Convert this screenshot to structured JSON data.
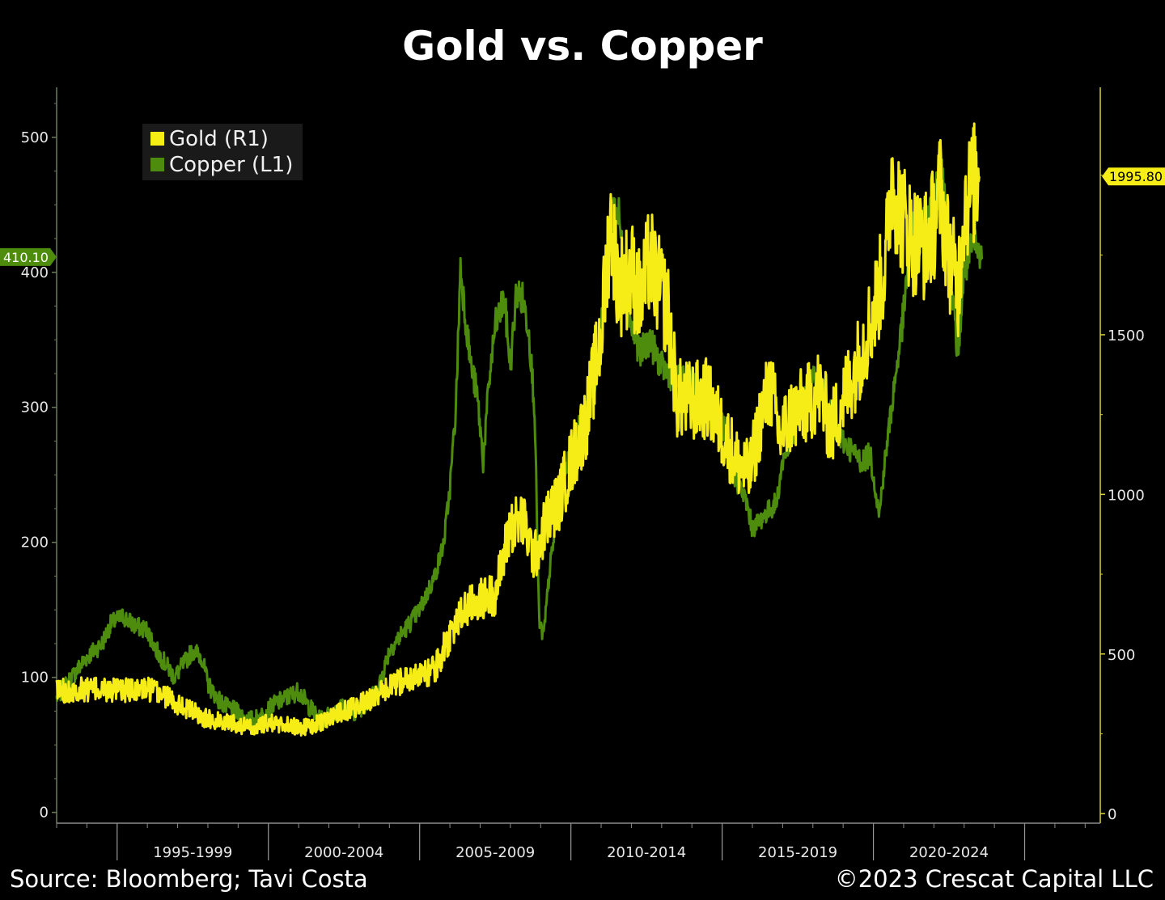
{
  "title": "Gold vs. Copper",
  "footer": {
    "source": "Source: Bloomberg; Tavi Costa",
    "copyright": "©2023 Crescat Capital LLC"
  },
  "colors": {
    "gold": "#f6ec16",
    "copper": "#4d8c0c",
    "background": "#000000",
    "axis_left": "#6b7a5c",
    "axis_right": "#d8d23a"
  },
  "chart_data": {
    "type": "line",
    "title": "Gold vs. Copper",
    "x_tick_labels": [
      "1995-1999",
      "2000-2004",
      "2005-2009",
      "2010-2014",
      "2015-2019",
      "2020-2024"
    ],
    "xlim": [
      1993.0,
      2027.5
    ],
    "legend": {
      "placement": "top-left",
      "entries": [
        "Gold (R1)",
        "Copper (L1)"
      ]
    },
    "y_left": {
      "ticks": [
        0,
        100,
        200,
        300,
        400,
        500
      ],
      "ylim": [
        -8,
        537
      ],
      "last_value_label": "410.10"
    },
    "y_right": {
      "ticks": [
        0,
        500,
        1000,
        1500
      ],
      "ylim": [
        -30,
        2275
      ],
      "last_value_label": "1995.80"
    },
    "grid": false,
    "series": [
      {
        "name": "Copper (L1)",
        "axis": "left",
        "points": [
          [
            1993.0,
            85
          ],
          [
            1993.5,
            100
          ],
          [
            1994.0,
            115
          ],
          [
            1994.5,
            125
          ],
          [
            1994.8,
            140
          ],
          [
            1995.2,
            145
          ],
          [
            1995.6,
            138
          ],
          [
            1996.0,
            135
          ],
          [
            1996.3,
            120
          ],
          [
            1996.6,
            110
          ],
          [
            1996.9,
            100
          ],
          [
            1997.2,
            110
          ],
          [
            1997.5,
            120
          ],
          [
            1997.8,
            115
          ],
          [
            1998.0,
            95
          ],
          [
            1998.3,
            85
          ],
          [
            1998.6,
            78
          ],
          [
            1998.9,
            75
          ],
          [
            1999.2,
            70
          ],
          [
            1999.5,
            68
          ],
          [
            1999.8,
            72
          ],
          [
            2000.2,
            80
          ],
          [
            2000.6,
            85
          ],
          [
            2001.0,
            90
          ],
          [
            2001.3,
            80
          ],
          [
            2001.7,
            68
          ],
          [
            2002.0,
            72
          ],
          [
            2002.4,
            78
          ],
          [
            2002.8,
            74
          ],
          [
            2003.2,
            80
          ],
          [
            2003.6,
            90
          ],
          [
            2004.0,
            120
          ],
          [
            2004.5,
            135
          ],
          [
            2005.0,
            150
          ],
          [
            2005.5,
            175
          ],
          [
            2005.8,
            200
          ],
          [
            2006.0,
            240
          ],
          [
            2006.2,
            300
          ],
          [
            2006.35,
            405
          ],
          [
            2006.5,
            370
          ],
          [
            2006.7,
            330
          ],
          [
            2006.9,
            310
          ],
          [
            2007.1,
            260
          ],
          [
            2007.3,
            320
          ],
          [
            2007.5,
            360
          ],
          [
            2007.8,
            380
          ],
          [
            2008.0,
            330
          ],
          [
            2008.2,
            385
          ],
          [
            2008.4,
            380
          ],
          [
            2008.6,
            360
          ],
          [
            2008.8,
            300
          ],
          [
            2008.95,
            140
          ],
          [
            2009.1,
            130
          ],
          [
            2009.3,
            180
          ],
          [
            2009.6,
            230
          ],
          [
            2009.9,
            260
          ],
          [
            2010.2,
            280
          ],
          [
            2010.5,
            300
          ],
          [
            2010.8,
            320
          ],
          [
            2011.0,
            360
          ],
          [
            2011.2,
            410
          ],
          [
            2011.4,
            450
          ],
          [
            2011.6,
            440
          ],
          [
            2011.8,
            390
          ],
          [
            2012.0,
            360
          ],
          [
            2012.3,
            340
          ],
          [
            2012.6,
            350
          ],
          [
            2013.0,
            330
          ],
          [
            2013.5,
            320
          ],
          [
            2014.0,
            320
          ],
          [
            2014.5,
            300
          ],
          [
            2015.0,
            290
          ],
          [
            2015.4,
            250
          ],
          [
            2015.8,
            230
          ],
          [
            2016.0,
            210
          ],
          [
            2016.4,
            220
          ],
          [
            2016.8,
            230
          ],
          [
            2017.0,
            260
          ],
          [
            2017.4,
            285
          ],
          [
            2017.8,
            310
          ],
          [
            2018.0,
            320
          ],
          [
            2018.4,
            310
          ],
          [
            2018.8,
            280
          ],
          [
            2019.2,
            270
          ],
          [
            2019.6,
            260
          ],
          [
            2019.9,
            265
          ],
          [
            2020.2,
            220
          ],
          [
            2020.3,
            245
          ],
          [
            2020.6,
            300
          ],
          [
            2021.0,
            370
          ],
          [
            2021.3,
            440
          ],
          [
            2021.6,
            430
          ],
          [
            2022.0,
            450
          ],
          [
            2022.3,
            480
          ],
          [
            2022.6,
            380
          ],
          [
            2022.8,
            340
          ],
          [
            2023.0,
            400
          ],
          [
            2023.3,
            420
          ],
          [
            2023.6,
            410
          ]
        ]
      },
      {
        "name": "Gold (R1)",
        "axis": "right",
        "points": [
          [
            1993.0,
            385
          ],
          [
            1994.0,
            390
          ],
          [
            1995.0,
            385
          ],
          [
            1996.0,
            390
          ],
          [
            1996.5,
            375
          ],
          [
            1997.0,
            345
          ],
          [
            1997.5,
            320
          ],
          [
            1998.0,
            295
          ],
          [
            1998.5,
            290
          ],
          [
            1999.0,
            280
          ],
          [
            1999.5,
            265
          ],
          [
            2000.0,
            285
          ],
          [
            2000.5,
            280
          ],
          [
            2001.0,
            270
          ],
          [
            2001.5,
            275
          ],
          [
            2002.0,
            300
          ],
          [
            2002.5,
            320
          ],
          [
            2003.0,
            340
          ],
          [
            2003.5,
            365
          ],
          [
            2004.0,
            395
          ],
          [
            2004.5,
            420
          ],
          [
            2005.0,
            430
          ],
          [
            2005.5,
            450
          ],
          [
            2006.0,
            560
          ],
          [
            2006.5,
            640
          ],
          [
            2007.0,
            670
          ],
          [
            2007.5,
            690
          ],
          [
            2008.0,
            900
          ],
          [
            2008.4,
            920
          ],
          [
            2008.8,
            800
          ],
          [
            2009.2,
            920
          ],
          [
            2009.6,
            980
          ],
          [
            2010.0,
            1100
          ],
          [
            2010.5,
            1230
          ],
          [
            2011.0,
            1500
          ],
          [
            2011.3,
            1850
          ],
          [
            2011.6,
            1650
          ],
          [
            2012.0,
            1700
          ],
          [
            2012.3,
            1600
          ],
          [
            2012.6,
            1740
          ],
          [
            2012.9,
            1650
          ],
          [
            2013.2,
            1580
          ],
          [
            2013.5,
            1300
          ],
          [
            2014.0,
            1290
          ],
          [
            2014.5,
            1300
          ],
          [
            2015.0,
            1200
          ],
          [
            2015.5,
            1100
          ],
          [
            2015.9,
            1060
          ],
          [
            2016.3,
            1250
          ],
          [
            2016.6,
            1340
          ],
          [
            2016.9,
            1180
          ],
          [
            2017.3,
            1250
          ],
          [
            2017.8,
            1280
          ],
          [
            2018.2,
            1330
          ],
          [
            2018.6,
            1200
          ],
          [
            2019.0,
            1300
          ],
          [
            2019.5,
            1420
          ],
          [
            2020.0,
            1570
          ],
          [
            2020.4,
            1720
          ],
          [
            2020.6,
            2000
          ],
          [
            2020.9,
            1880
          ],
          [
            2021.3,
            1800
          ],
          [
            2021.7,
            1780
          ],
          [
            2022.0,
            1850
          ],
          [
            2022.2,
            1950
          ],
          [
            2022.5,
            1750
          ],
          [
            2022.8,
            1650
          ],
          [
            2023.0,
            1900
          ],
          [
            2023.3,
            1970
          ],
          [
            2023.5,
            1996
          ]
        ]
      }
    ]
  }
}
